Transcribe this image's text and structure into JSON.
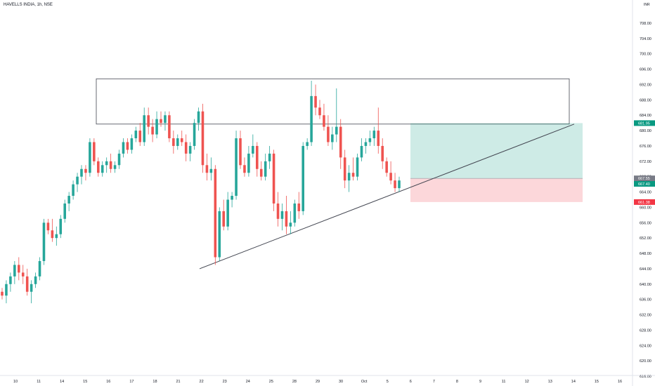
{
  "header": {
    "symbol_title": "HAVELLS INDIA, 1h, NSE",
    "currency": "INR"
  },
  "chart_data": {
    "type": "candlestick",
    "y_ticks": [
      616,
      620,
      624,
      628,
      632,
      636,
      640,
      644,
      648,
      652,
      656,
      660,
      664,
      668,
      672,
      676,
      680,
      684,
      688,
      692,
      696,
      700,
      704,
      708
    ],
    "x_ticks": [
      "10",
      "11",
      "14",
      "15",
      "16",
      "17",
      "18",
      "21",
      "22",
      "23",
      "24",
      "25",
      "28",
      "29",
      "30",
      "Oct",
      "5",
      "6",
      "7",
      "8",
      "9",
      "11",
      "12",
      "13",
      "14",
      "15",
      "16"
    ],
    "price_tags": [
      {
        "value": 681.95,
        "label": "681.95",
        "color": "#089981"
      },
      {
        "value": 667.55,
        "label": "667.55",
        "color": "#787b86"
      },
      {
        "value": 667.4,
        "label": "667.40",
        "color": "#089981"
      },
      {
        "value": 661.38,
        "label": "661.38",
        "color": "#f23645"
      }
    ],
    "resistance_box": {
      "top": 693.5,
      "bottom": 681.7
    },
    "trendline": {
      "start_price": 644.0,
      "end_price": 681.7
    },
    "position": {
      "entry": 667.55,
      "target": 681.95,
      "stop": 661.38
    },
    "candles": [
      [
        638,
        639,
        636,
        637
      ],
      [
        637,
        641,
        635,
        640
      ],
      [
        640,
        643,
        638,
        642
      ],
      [
        642,
        646,
        640,
        645
      ],
      [
        645,
        647,
        641,
        643
      ],
      [
        643,
        645,
        640,
        642
      ],
      [
        642,
        644,
        637,
        638
      ],
      [
        638,
        641,
        635,
        640
      ],
      [
        640,
        643,
        639,
        642
      ],
      [
        642,
        647,
        641,
        646
      ],
      [
        646,
        657,
        645,
        656
      ],
      [
        656,
        657,
        653,
        654
      ],
      [
        654,
        657,
        651,
        652
      ],
      [
        652,
        655,
        650,
        653
      ],
      [
        653,
        658,
        652,
        657
      ],
      [
        657,
        662,
        656,
        661
      ],
      [
        661,
        664,
        659,
        663
      ],
      [
        663,
        667,
        662,
        666
      ],
      [
        666,
        669,
        664,
        668
      ],
      [
        668,
        671,
        666,
        670
      ],
      [
        670,
        671,
        667,
        669
      ],
      [
        669,
        678,
        668,
        677
      ],
      [
        677,
        678,
        671,
        672
      ],
      [
        672,
        673,
        668,
        669
      ],
      [
        669,
        672,
        668,
        671
      ],
      [
        671,
        673,
        669,
        672
      ],
      [
        672,
        674,
        669,
        670
      ],
      [
        670,
        672,
        669,
        671
      ],
      [
        671,
        675,
        670,
        674
      ],
      [
        674,
        678,
        673,
        677
      ],
      [
        677,
        678,
        674,
        675
      ],
      [
        675,
        679,
        674,
        678
      ],
      [
        678,
        681,
        677,
        680
      ],
      [
        680,
        682,
        676,
        677
      ],
      [
        677,
        686,
        676,
        684
      ],
      [
        684,
        686,
        679,
        681
      ],
      [
        681,
        683,
        677,
        679
      ],
      [
        679,
        685,
        678,
        683
      ],
      [
        683,
        685,
        681,
        682
      ],
      [
        682,
        685,
        680,
        684
      ],
      [
        684,
        685,
        677,
        678
      ],
      [
        678,
        680,
        674,
        676
      ],
      [
        676,
        679,
        675,
        678
      ],
      [
        678,
        680,
        676,
        677
      ],
      [
        677,
        679,
        672,
        674
      ],
      [
        674,
        677,
        672,
        676
      ],
      [
        676,
        683,
        675,
        682
      ],
      [
        682,
        686,
        680,
        685
      ],
      [
        685,
        687,
        669,
        671
      ],
      [
        671,
        674,
        667,
        669
      ],
      [
        669,
        673,
        667,
        670
      ],
      [
        670,
        671,
        645,
        647
      ],
      [
        647,
        660,
        646,
        659
      ],
      [
        659,
        662,
        654,
        655
      ],
      [
        655,
        664,
        654,
        662
      ],
      [
        662,
        664,
        660,
        663
      ],
      [
        663,
        680,
        662,
        678
      ],
      [
        678,
        680,
        670,
        671
      ],
      [
        671,
        673,
        668,
        669
      ],
      [
        669,
        676,
        668,
        674
      ],
      [
        674,
        679,
        673,
        676
      ],
      [
        676,
        677,
        668,
        670
      ],
      [
        670,
        672,
        667,
        668
      ],
      [
        668,
        674,
        667,
        672
      ],
      [
        672,
        676,
        670,
        674
      ],
      [
        674,
        675,
        659,
        661
      ],
      [
        661,
        664,
        655,
        657
      ],
      [
        657,
        661,
        654,
        659
      ],
      [
        659,
        663,
        653,
        655
      ],
      [
        655,
        659,
        653,
        656
      ],
      [
        656,
        662,
        655,
        661
      ],
      [
        661,
        664,
        657,
        659
      ],
      [
        659,
        677,
        658,
        676
      ],
      [
        676,
        678,
        675,
        677
      ],
      [
        677,
        693,
        676,
        689
      ],
      [
        689,
        692,
        684,
        686
      ],
      [
        686,
        688,
        683,
        684
      ],
      [
        684,
        687,
        680,
        681
      ],
      [
        681,
        684,
        676,
        677
      ],
      [
        677,
        681,
        675,
        679
      ],
      [
        679,
        691,
        677,
        681
      ],
      [
        681,
        683,
        670,
        673
      ],
      [
        673,
        675,
        665,
        667
      ],
      [
        667,
        671,
        664,
        669
      ],
      [
        669,
        673,
        667,
        668
      ],
      [
        668,
        674,
        667,
        673
      ],
      [
        673,
        678,
        672,
        676
      ],
      [
        676,
        678,
        674,
        677
      ],
      [
        677,
        680,
        676,
        678
      ],
      [
        678,
        681,
        676,
        680
      ],
      [
        680,
        686,
        674,
        676
      ],
      [
        676,
        678,
        670,
        672
      ],
      [
        672,
        673,
        668,
        669
      ],
      [
        669,
        672,
        666,
        667
      ],
      [
        667,
        669,
        664,
        665
      ],
      [
        665,
        668,
        664,
        667
      ]
    ]
  }
}
